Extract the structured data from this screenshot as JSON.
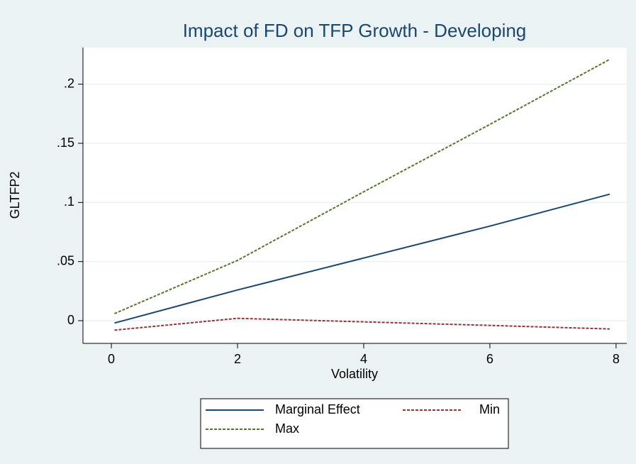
{
  "chart_data": {
    "type": "line",
    "title": "Impact of FD on TFP Growth - Developing",
    "x_label": "Volatility",
    "y_label": "GLTFP2",
    "x": [
      0.05,
      2,
      4,
      6,
      7.9
    ],
    "series": [
      {
        "name": "Marginal Effect",
        "color": "#1a476f",
        "dashed": false,
        "values": [
          -0.002,
          0.026,
          0.053,
          0.08,
          0.107
        ]
      },
      {
        "name": "Min",
        "color": "#90353b",
        "dashed": true,
        "values": [
          -0.008,
          0.002,
          -0.001,
          -0.004,
          -0.007
        ]
      },
      {
        "name": "Max",
        "color": "#55752f",
        "dashed": true,
        "values": [
          0.006,
          0.051,
          0.109,
          0.166,
          0.221
        ]
      }
    ],
    "xlim": [
      -0.45,
      8.17
    ],
    "xticks": [
      0,
      2,
      4,
      6,
      8
    ],
    "ylim": [
      -0.0192,
      0.231
    ],
    "yticks": [
      0,
      {
        "value": 0.05,
        "label": ".05"
      },
      {
        "value": 0.1,
        "label": ".1"
      },
      {
        "value": 0.15,
        "label": ".15"
      },
      {
        "value": 0.2,
        "label": ".2"
      }
    ],
    "grid": true,
    "legend": "bottom"
  }
}
